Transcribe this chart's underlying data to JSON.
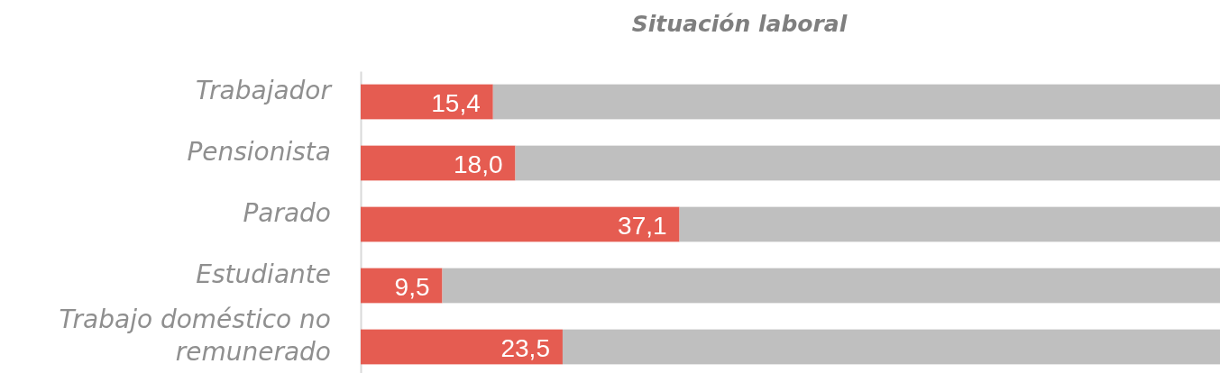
{
  "chart_data": {
    "type": "bar",
    "orientation": "horizontal",
    "stacked": true,
    "title": "Situación laboral",
    "categories": [
      "Trabajador",
      "Pensionista",
      "Parado",
      "Estudiante",
      "Trabajo doméstico no remunerado"
    ],
    "series": [
      {
        "color": "#e55c51",
        "values": [
          15.4,
          18.0,
          37.1,
          9.5,
          23.5
        ],
        "value_labels": [
          "15,4",
          "18,0",
          "37,1",
          "9,5",
          "23,5"
        ]
      },
      {
        "color": "#bfbfbf",
        "values": [
          84.6,
          82.0,
          62.9,
          90.5,
          76.5
        ]
      }
    ],
    "xlim": [
      0,
      100
    ],
    "tick_labels": "y"
  }
}
